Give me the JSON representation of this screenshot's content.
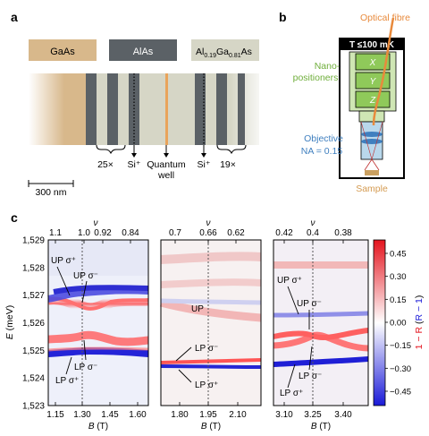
{
  "panel_a": {
    "label": "a",
    "layers": {
      "gaas": "GaAs",
      "alas": "AlAs",
      "algaas_prefix": "Al",
      "algaas_sub1": "0.19",
      "algaas_mid": "Ga",
      "algaas_sub2": "0.81",
      "algaas_suffix": "As"
    },
    "annotations": {
      "rep_left": "25×",
      "si_left": "Si⁺",
      "qw_line1": "Quantum",
      "qw_line2": "well",
      "si_right": "Si⁺",
      "rep_right": "19×"
    },
    "scalebar": "300 nm",
    "colors": {
      "gaas": "#d8b88b",
      "alas": "#5b6166",
      "algaas": "#d6d6c6",
      "qw": "#e9a45b"
    }
  },
  "panel_b": {
    "label": "b",
    "fibre": "Optical fibre",
    "temp": "T ≤100 mK",
    "nano1": "Nano-",
    "nano2": "positioners",
    "stages": [
      "X",
      "Y",
      "Z"
    ],
    "obj1": "Objective",
    "obj2": "NA = 0.15",
    "sample": "Sample",
    "colors": {
      "fibre": "#e88a3c",
      "stage": "#8fc95a",
      "objective": "#3f7fbf"
    }
  },
  "panel_c": {
    "label": "c",
    "ylabel": "E (meV)",
    "yticks": [
      "1,529",
      "1,528",
      "1,527",
      "1,526",
      "1,525",
      "1,524",
      "1,523"
    ],
    "nu_symbol": "ν",
    "subplots": [
      {
        "xticks": [
          "1.15",
          "1.30",
          "1.45",
          "1.60"
        ],
        "nu_ticks": [
          "1.1",
          "1.0",
          "0.92",
          "0.84"
        ],
        "xlabel": "B (T)",
        "labels": [
          "UP σ⁺",
          "UP σ⁻",
          "LP σ⁻",
          "LP σ⁺"
        ]
      },
      {
        "xticks": [
          "1.80",
          "1.95",
          "2.10"
        ],
        "nu_ticks": [
          "0.7",
          "0.66",
          "0.62"
        ],
        "xlabel": "B (T)",
        "labels": [
          "UP",
          "LP σ⁻",
          "LP σ⁺"
        ]
      },
      {
        "xticks": [
          "3.10",
          "3.25",
          "3.40"
        ],
        "nu_ticks": [
          "0.42",
          "0.4",
          "0.38"
        ],
        "xlabel": "B (T)",
        "labels": [
          "UP σ⁺",
          "UP σ⁻",
          "LP σ⁻",
          "LP σ⁺"
        ]
      }
    ],
    "colorbar": {
      "ticks": [
        "0.45",
        "0.30",
        "0.15",
        "0.00",
        "−0.15",
        "−0.30",
        "−0.45"
      ],
      "label_red": "1 − R",
      "label_mid": " (",
      "label_blue": "R − 1",
      "label_end": ")"
    }
  }
}
